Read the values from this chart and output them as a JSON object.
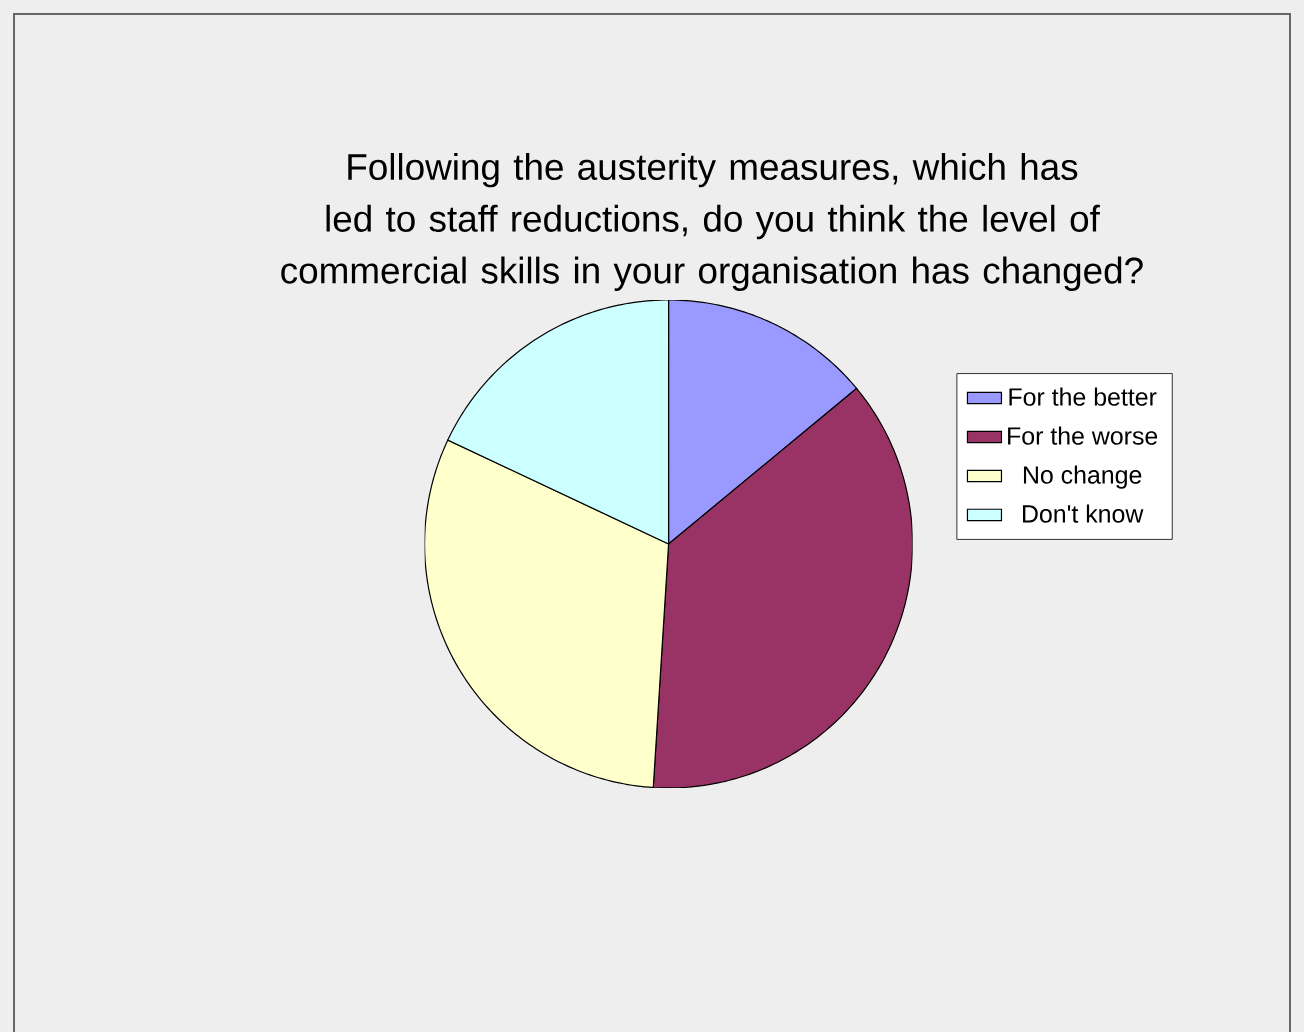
{
  "chart_data": {
    "type": "pie",
    "title": "Following the austerity measures, which has led to staff reductions, do you think the level of commercial skills in your organisation has changed?",
    "categories": [
      "For the better",
      "For the worse",
      "No change",
      "Don't know"
    ],
    "values": [
      14,
      37,
      31,
      18
    ],
    "colors": [
      "#9999ff",
      "#993366",
      "#ffffcc",
      "#ccffff"
    ],
    "legend": "right"
  }
}
